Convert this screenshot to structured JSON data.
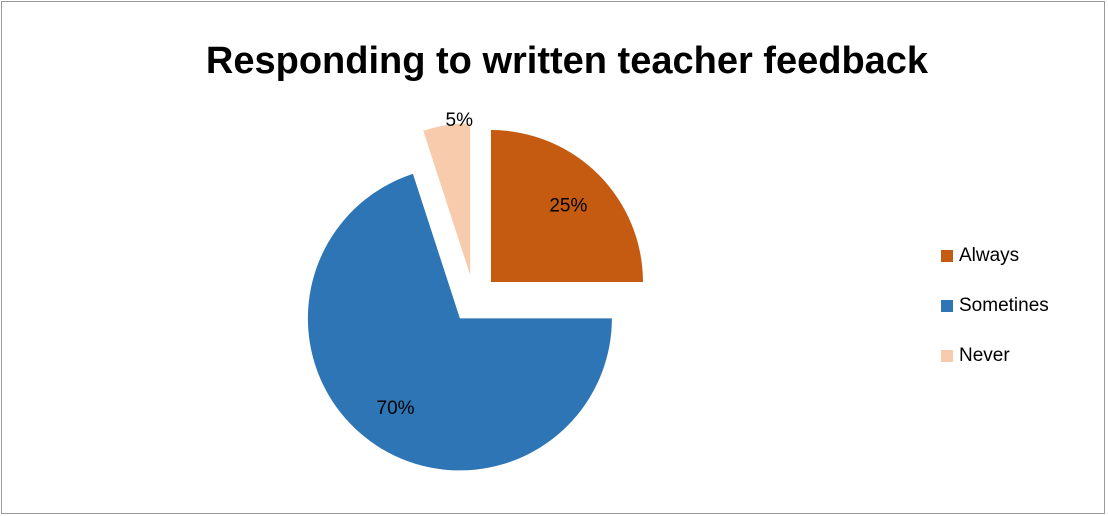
{
  "chart_data": {
    "type": "pie",
    "title": "Responding to written teacher feedback",
    "categories": [
      "Always",
      "Sometines",
      "Never"
    ],
    "values": [
      25,
      70,
      5
    ],
    "data_labels": [
      "25%",
      "70%",
      "5%"
    ],
    "colors": [
      "#c55a11",
      "#2e75b6",
      "#f8cbad"
    ],
    "exploded": true,
    "legend": {
      "position": "right",
      "items": [
        {
          "label": "Always",
          "color": "#c55a11"
        },
        {
          "label": "Sometines",
          "color": "#2e75b6"
        },
        {
          "label": "Never",
          "color": "#f8cbad"
        }
      ]
    }
  }
}
